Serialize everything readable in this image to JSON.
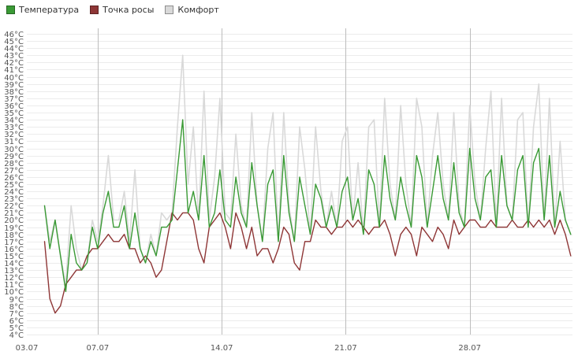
{
  "legend": [
    {
      "label": "Температура",
      "color": "#3a9a35"
    },
    {
      "label": "Точка росы",
      "color": "#8e3636"
    },
    {
      "label": "Комфорт",
      "color": "#d9d9d9"
    }
  ],
  "chart_data": {
    "type": "line",
    "title": "",
    "xlabel": "",
    "ylabel": "",
    "ylim": [
      4,
      46
    ],
    "y_ticks": [
      "4°C",
      "5°C",
      "6°C",
      "7°C",
      "8°C",
      "9°C",
      "10°C",
      "11°C",
      "12°C",
      "13°C",
      "14°C",
      "15°C",
      "16°C",
      "17°C",
      "18°C",
      "19°C",
      "20°C",
      "21°C",
      "22°C",
      "23°C",
      "24°C",
      "25°C",
      "26°C",
      "27°C",
      "28°C",
      "29°C",
      "30°C",
      "31°C",
      "32°C",
      "33°C",
      "34°C",
      "35°C",
      "36°C",
      "37°C",
      "38°C",
      "39°C",
      "40°C",
      "41°C",
      "42°C",
      "43°C",
      "44°C",
      "45°C",
      "46°C"
    ],
    "x_ticks": [
      "03.07",
      "07.07",
      "14.07",
      "21.07",
      "28.07"
    ],
    "x_tick_days": [
      3,
      7,
      14,
      21,
      28
    ],
    "xlim_days": [
      3,
      33.8
    ],
    "x_gridlines_days": [
      7,
      14,
      21,
      28
    ],
    "grid": true,
    "legend_position": "top-left",
    "x_unit": "day of month (07)",
    "series": [
      {
        "name": "Температура",
        "color": "#3a9a35",
        "x": [
          4.0,
          4.3,
          4.6,
          4.9,
          5.2,
          5.5,
          5.8,
          6.1,
          6.4,
          6.7,
          7.0,
          7.3,
          7.6,
          7.9,
          8.2,
          8.5,
          8.8,
          9.1,
          9.4,
          9.7,
          10.0,
          10.3,
          10.6,
          10.9,
          11.2,
          11.5,
          11.8,
          12.1,
          12.4,
          12.7,
          13.0,
          13.3,
          13.6,
          13.9,
          14.2,
          14.5,
          14.8,
          15.1,
          15.4,
          15.7,
          16.0,
          16.3,
          16.6,
          16.9,
          17.2,
          17.5,
          17.8,
          18.1,
          18.4,
          18.7,
          19.0,
          19.3,
          19.6,
          19.9,
          20.2,
          20.5,
          20.8,
          21.1,
          21.4,
          21.7,
          22.0,
          22.3,
          22.6,
          22.9,
          23.2,
          23.5,
          23.8,
          24.1,
          24.4,
          24.7,
          25.0,
          25.3,
          25.6,
          25.9,
          26.2,
          26.5,
          26.8,
          27.1,
          27.4,
          27.7,
          28.0,
          28.3,
          28.6,
          28.9,
          29.2,
          29.5,
          29.8,
          30.1,
          30.4,
          30.7,
          31.0,
          31.3,
          31.6,
          31.9,
          32.2,
          32.5,
          32.8,
          33.1,
          33.4,
          33.7
        ],
        "values": [
          22,
          16,
          20,
          15,
          10,
          18,
          14,
          13,
          14,
          19,
          16,
          21,
          24,
          19,
          19,
          22,
          16,
          21,
          16,
          14,
          17,
          15,
          19,
          19,
          20,
          27,
          34,
          21,
          24,
          20,
          29,
          19,
          21,
          27,
          20,
          19,
          26,
          21,
          19,
          28,
          22,
          17,
          25,
          27,
          17,
          29,
          21,
          17,
          26,
          22,
          18,
          25,
          23,
          19,
          22,
          19,
          24,
          26,
          20,
          23,
          18,
          27,
          25,
          19,
          29,
          23,
          20,
          26,
          22,
          19,
          29,
          26,
          19,
          24,
          29,
          23,
          20,
          28,
          21,
          19,
          30,
          23,
          20,
          26,
          27,
          19,
          29,
          22,
          20,
          27,
          29,
          19,
          28,
          30,
          20,
          29,
          19,
          24,
          20,
          18
        ]
      },
      {
        "name": "Точка росы",
        "color": "#8e3636",
        "x": [
          4.0,
          4.3,
          4.6,
          4.9,
          5.2,
          5.5,
          5.8,
          6.1,
          6.4,
          6.7,
          7.0,
          7.3,
          7.6,
          7.9,
          8.2,
          8.5,
          8.8,
          9.1,
          9.4,
          9.7,
          10.0,
          10.3,
          10.6,
          10.9,
          11.2,
          11.5,
          11.8,
          12.1,
          12.4,
          12.7,
          13.0,
          13.3,
          13.6,
          13.9,
          14.2,
          14.5,
          14.8,
          15.1,
          15.4,
          15.7,
          16.0,
          16.3,
          16.6,
          16.9,
          17.2,
          17.5,
          17.8,
          18.1,
          18.4,
          18.7,
          19.0,
          19.3,
          19.6,
          19.9,
          20.2,
          20.5,
          20.8,
          21.1,
          21.4,
          21.7,
          22.0,
          22.3,
          22.6,
          22.9,
          23.2,
          23.5,
          23.8,
          24.1,
          24.4,
          24.7,
          25.0,
          25.3,
          25.6,
          25.9,
          26.2,
          26.5,
          26.8,
          27.1,
          27.4,
          27.7,
          28.0,
          28.3,
          28.6,
          28.9,
          29.2,
          29.5,
          29.8,
          30.1,
          30.4,
          30.7,
          31.0,
          31.3,
          31.6,
          31.9,
          32.2,
          32.5,
          32.8,
          33.1,
          33.4,
          33.7
        ],
        "values": [
          17,
          9,
          7,
          8,
          11,
          12,
          13,
          13,
          15,
          16,
          16,
          17,
          18,
          17,
          17,
          18,
          16,
          16,
          14,
          15,
          14,
          12,
          13,
          17,
          21,
          20,
          21,
          21,
          20,
          16,
          14,
          19,
          20,
          21,
          19,
          16,
          21,
          19,
          16,
          19,
          15,
          16,
          16,
          14,
          16,
          19,
          18,
          14,
          13,
          17,
          17,
          20,
          19,
          19,
          18,
          19,
          19,
          20,
          19,
          20,
          19,
          18,
          19,
          19,
          20,
          18,
          15,
          18,
          19,
          18,
          15,
          19,
          18,
          17,
          19,
          18,
          16,
          20,
          18,
          19,
          20,
          20,
          19,
          19,
          20,
          19,
          19,
          19,
          20,
          19,
          19,
          20,
          19,
          20,
          19,
          20,
          18,
          20,
          18,
          15
        ]
      },
      {
        "name": "Комфорт",
        "color": "#d9d9d9",
        "x": [
          4.0,
          4.3,
          4.6,
          4.9,
          5.2,
          5.5,
          5.8,
          6.1,
          6.4,
          6.7,
          7.0,
          7.3,
          7.6,
          7.9,
          8.2,
          8.5,
          8.8,
          9.1,
          9.4,
          9.7,
          10.0,
          10.3,
          10.6,
          10.9,
          11.2,
          11.5,
          11.8,
          12.1,
          12.4,
          12.7,
          13.0,
          13.3,
          13.6,
          13.9,
          14.2,
          14.5,
          14.8,
          15.1,
          15.4,
          15.7,
          16.0,
          16.3,
          16.6,
          16.9,
          17.2,
          17.5,
          17.8,
          18.1,
          18.4,
          18.7,
          19.0,
          19.3,
          19.6,
          19.9,
          20.2,
          20.5,
          20.8,
          21.1,
          21.4,
          21.7,
          22.0,
          22.3,
          22.6,
          22.9,
          23.2,
          23.5,
          23.8,
          24.1,
          24.4,
          24.7,
          25.0,
          25.3,
          25.6,
          25.9,
          26.2,
          26.5,
          26.8,
          27.1,
          27.4,
          27.7,
          28.0,
          28.3,
          28.6,
          28.9,
          29.2,
          29.5,
          29.8,
          30.1,
          30.4,
          30.7,
          31.0,
          31.3,
          31.6,
          31.9,
          32.2,
          32.5,
          32.8,
          33.1,
          33.4,
          33.7
        ],
        "values": [
          22,
          17,
          20,
          15,
          11,
          22,
          16,
          13,
          14,
          20,
          17,
          22,
          29,
          20,
          20,
          24,
          17,
          27,
          16,
          14,
          18,
          15,
          21,
          20,
          21,
          33,
          43,
          25,
          33,
          20,
          38,
          20,
          26,
          37,
          21,
          20,
          32,
          22,
          19,
          35,
          22,
          17,
          30,
          35,
          17,
          35,
          22,
          17,
          33,
          27,
          18,
          33,
          24,
          19,
          24,
          19,
          31,
          33,
          20,
          28,
          18,
          33,
          34,
          19,
          37,
          25,
          20,
          36,
          25,
          19,
          37,
          33,
          19,
          29,
          35,
          25,
          20,
          35,
          22,
          19,
          36,
          25,
          20,
          30,
          38,
          19,
          37,
          22,
          20,
          34,
          35,
          19,
          33,
          39,
          20,
          37,
          19,
          31,
          20,
          18
        ]
      }
    ]
  }
}
